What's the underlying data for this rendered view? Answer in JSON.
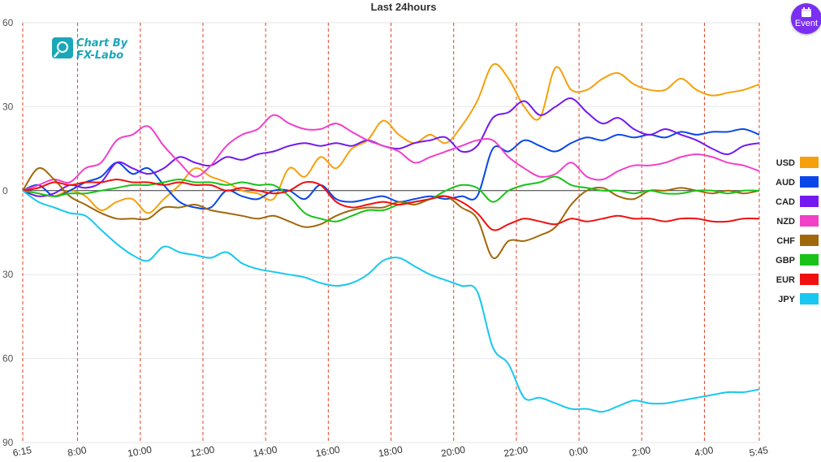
{
  "event_button": {
    "label": "Event",
    "icon": "calendar-icon"
  },
  "logo": {
    "line1": "Chart By",
    "line2": "FX-Labo",
    "icon": "fx-labo-logo-icon"
  },
  "chart_data": {
    "type": "line",
    "title": "Last 24hours",
    "xlabel": "",
    "ylabel": "",
    "x_range": [
      0,
      23.5
    ],
    "ylim": [
      -90,
      60
    ],
    "y_ticks": [
      {
        "value": 60,
        "label": "60"
      },
      {
        "value": 30,
        "label": "30"
      },
      {
        "value": 0,
        "label": "0"
      },
      {
        "value": -30,
        "label": "30"
      },
      {
        "value": -60,
        "label": "60"
      },
      {
        "value": -90,
        "label": "90"
      }
    ],
    "x_ticks": [
      {
        "x": 0,
        "label": "6:15"
      },
      {
        "x": 1.75,
        "label": "8:00"
      },
      {
        "x": 3.75,
        "label": "10:00"
      },
      {
        "x": 5.75,
        "label": "12:00"
      },
      {
        "x": 7.75,
        "label": "14:00"
      },
      {
        "x": 9.75,
        "label": "16:00"
      },
      {
        "x": 11.75,
        "label": "18:00"
      },
      {
        "x": 13.75,
        "label": "20:00"
      },
      {
        "x": 15.75,
        "label": "22:00"
      },
      {
        "x": 17.75,
        "label": "0:00"
      },
      {
        "x": 19.75,
        "label": "2:00"
      },
      {
        "x": 21.75,
        "label": "4:00"
      },
      {
        "x": 23.5,
        "label": "5:45"
      }
    ],
    "vertical_gridlines": "dashed red at tick times",
    "legend_position": "right",
    "x": [
      0,
      0.5,
      1,
      1.5,
      2,
      2.5,
      3,
      3.5,
      4,
      4.5,
      5,
      5.5,
      6,
      6.5,
      7,
      7.5,
      8,
      8.5,
      9,
      9.5,
      10,
      10.5,
      11,
      11.5,
      12,
      12.5,
      13,
      13.5,
      14,
      14.5,
      15,
      15.5,
      16,
      16.5,
      17,
      17.5,
      18,
      18.5,
      19,
      19.5,
      20,
      20.5,
      21,
      21.5,
      22,
      22.5,
      23,
      23.5
    ],
    "series": [
      {
        "name": "USD",
        "color": "#f5a00c",
        "values": [
          0,
          -1,
          -2,
          0,
          -2,
          -7,
          -4,
          -3,
          -8,
          -3,
          2,
          8,
          5,
          3,
          0,
          -1,
          -3,
          8,
          5,
          12,
          8,
          15,
          18,
          25,
          20,
          17,
          20,
          17,
          23,
          32,
          45,
          40,
          30,
          26,
          44,
          36,
          36,
          40,
          42,
          38,
          36,
          36,
          40,
          36,
          34,
          35,
          36,
          38
        ]
      },
      {
        "name": "AUD",
        "color": "#0a47e8",
        "values": [
          0,
          2,
          -2,
          0,
          3,
          5,
          10,
          6,
          8,
          2,
          -4,
          -6,
          -6,
          0,
          -2,
          -3,
          0,
          0,
          -3,
          2,
          -3,
          -4,
          -3,
          -2,
          -4,
          -3,
          -2,
          -3,
          -2,
          -2,
          15,
          14,
          18,
          16,
          14,
          17,
          19,
          18,
          20,
          19,
          20,
          19,
          21,
          20,
          21,
          21,
          22,
          20
        ]
      },
      {
        "name": "CAD",
        "color": "#7319f0",
        "values": [
          0,
          -2,
          -1,
          2,
          1,
          3,
          10,
          8,
          6,
          8,
          12,
          10,
          9,
          12,
          11,
          13,
          14,
          16,
          17,
          16,
          17,
          16,
          18,
          16,
          15,
          17,
          18,
          19,
          14,
          16,
          26,
          28,
          32,
          27,
          30,
          33,
          28,
          24,
          26,
          22,
          20,
          22,
          20,
          18,
          15,
          13,
          16,
          17
        ]
      },
      {
        "name": "NZD",
        "color": "#f040c8",
        "values": [
          0,
          2,
          4,
          3,
          8,
          10,
          18,
          20,
          23,
          16,
          10,
          5,
          9,
          16,
          20,
          22,
          27,
          24,
          22,
          22,
          24,
          21,
          18,
          16,
          14,
          10,
          12,
          14,
          16,
          18,
          18,
          12,
          8,
          5,
          6,
          10,
          5,
          4,
          7,
          9,
          9,
          10,
          12,
          13,
          12,
          10,
          9,
          7
        ]
      },
      {
        "name": "CHF",
        "color": "#a0680a",
        "values": [
          0,
          8,
          4,
          -2,
          -5,
          -8,
          -10,
          -10,
          -10,
          -6,
          -6,
          -5,
          -7,
          -8,
          -9,
          -10,
          -9,
          -11,
          -13,
          -12,
          -9,
          -7,
          -6,
          -6,
          -4,
          -5,
          -3,
          -2,
          -6,
          -10,
          -24,
          -18,
          -18,
          -16,
          -13,
          -5,
          0,
          1,
          -2,
          -3,
          0,
          0,
          1,
          0,
          -1,
          0,
          -1,
          0
        ]
      },
      {
        "name": "GBP",
        "color": "#19c219",
        "values": [
          0,
          -1,
          -2,
          -1,
          -1,
          0,
          1,
          2,
          2,
          3,
          4,
          3,
          3,
          2,
          3,
          2,
          2,
          -2,
          -8,
          -10,
          -11,
          -9,
          -7,
          -7,
          -5,
          -4,
          -3,
          0,
          2,
          1,
          -4,
          0,
          2,
          3,
          5,
          2,
          1,
          0,
          0,
          -1,
          0,
          -1,
          -1,
          0,
          0,
          -1,
          0,
          0
        ]
      },
      {
        "name": "EUR",
        "color": "#f01010",
        "values": [
          0,
          1,
          3,
          2,
          3,
          3,
          4,
          3,
          3,
          2,
          3,
          2,
          2,
          0,
          1,
          0,
          -1,
          0,
          3,
          2,
          -4,
          -6,
          -5,
          -4,
          -5,
          -4,
          -3,
          -2,
          -4,
          -8,
          -14,
          -12,
          -10,
          -11,
          -12,
          -10,
          -11,
          -10,
          -9,
          -10,
          -10,
          -11,
          -10,
          -10,
          -11,
          -11,
          -10,
          -10
        ]
      },
      {
        "name": "JPY",
        "color": "#19c8f0",
        "values": [
          0,
          -4,
          -6,
          -8,
          -9,
          -14,
          -19,
          -23,
          -25,
          -20,
          -22,
          -23,
          -24,
          -22,
          -26,
          -28,
          -29,
          -30,
          -31,
          -33,
          -34,
          -33,
          -30,
          -25,
          -24,
          -27,
          -30,
          -32,
          -34,
          -36,
          -56,
          -62,
          -74,
          -74,
          -76,
          -78,
          -78,
          -79,
          -77,
          -75,
          -76,
          -76,
          -75,
          -74,
          -73,
          -72,
          -72,
          -71
        ]
      }
    ]
  }
}
